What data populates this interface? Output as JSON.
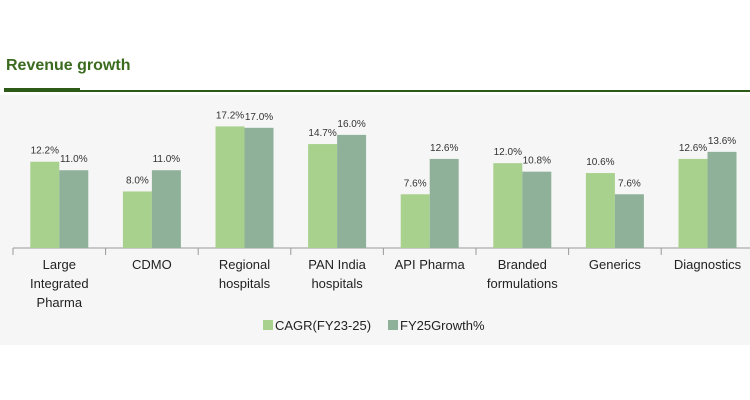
{
  "header": {
    "title": "Revenue growth"
  },
  "colors": {
    "accent": "#2e5a17",
    "title": "#3a6b1f",
    "series1": "#a9d18e",
    "series2": "#8fb19a"
  },
  "chart_data": {
    "type": "bar",
    "title": "Revenue growth",
    "xlabel": "",
    "ylabel": "",
    "ylim": [
      0,
      20
    ],
    "grid": false,
    "legend_position": "bottom",
    "categories": [
      [
        "Large",
        "Integrated",
        "Pharma"
      ],
      [
        "CDMO"
      ],
      [
        "Regional",
        "hospitals"
      ],
      [
        "PAN India",
        "hospitals"
      ],
      [
        "API Pharma"
      ],
      [
        "Branded",
        "formulations"
      ],
      [
        "Generics"
      ],
      [
        "Diagnostics"
      ]
    ],
    "series": [
      {
        "name": "CAGR(FY23-25)",
        "color": "#a9d18e",
        "values": [
          12.2,
          8.0,
          17.2,
          14.7,
          7.6,
          12.0,
          10.6,
          12.6
        ],
        "labels": [
          "12.2%",
          "8.0%",
          "17.2%",
          "14.7%",
          "7.6%",
          "12.0%",
          "10.6%",
          "12.6%"
        ]
      },
      {
        "name": "FY25Growth%",
        "color": "#8fb19a",
        "values": [
          11.0,
          11.0,
          17.0,
          16.0,
          12.6,
          10.8,
          7.6,
          13.6
        ],
        "labels": [
          "11.0%",
          "11.0%",
          "17.0%",
          "16.0%",
          "12.6%",
          "10.8%",
          "7.6%",
          "13.6%"
        ]
      }
    ]
  }
}
